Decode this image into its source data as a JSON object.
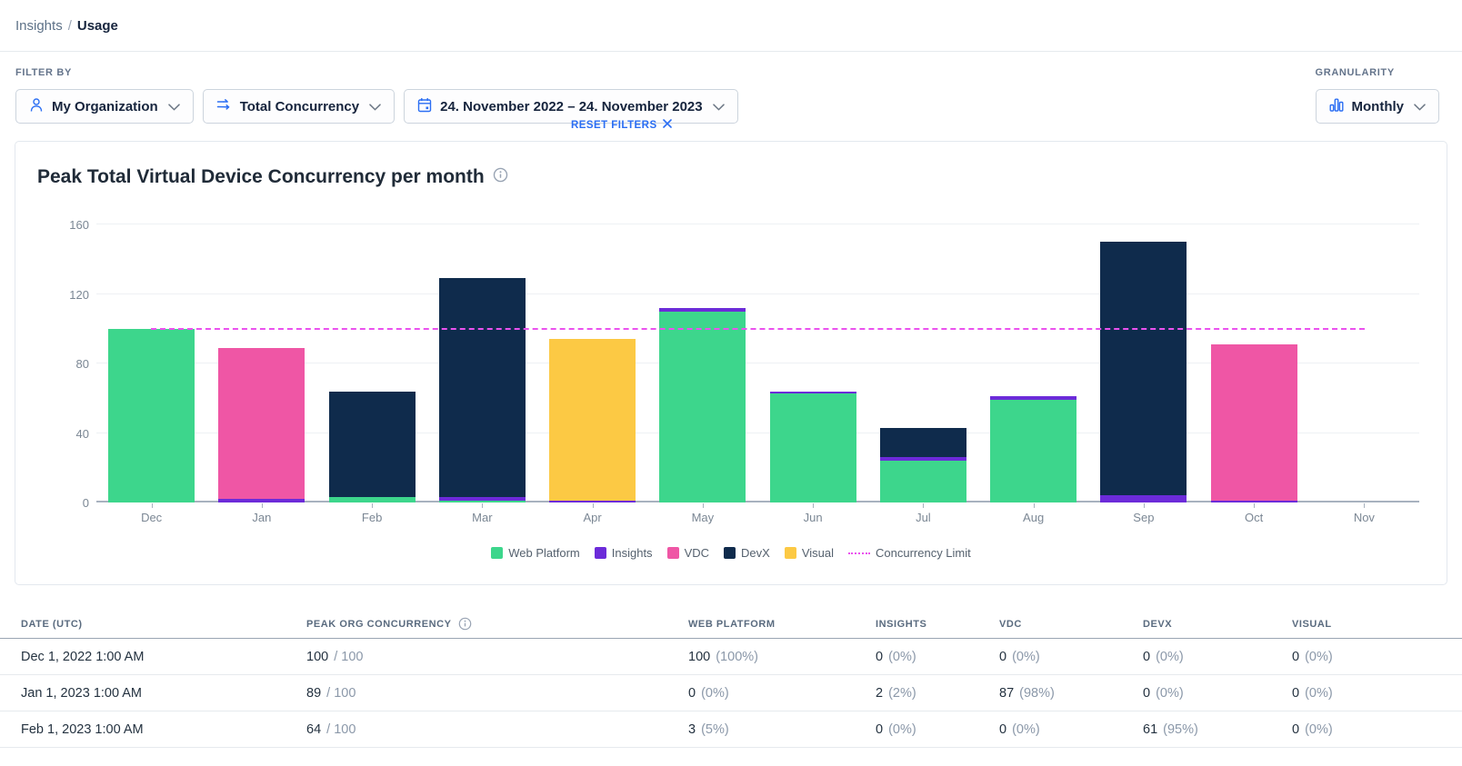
{
  "breadcrumb": {
    "parent": "Insights",
    "divider": "/",
    "current": "Usage"
  },
  "filters": {
    "filter_by_label": "FILTER BY",
    "reset_filters_label": "RESET FILTERS",
    "organization": {
      "label": "My Organization"
    },
    "metric": {
      "label": "Total Concurrency"
    },
    "date_range": {
      "label": "24. November 2022 – 24. November 2023"
    },
    "granularity": {
      "label": "GRANULARITY",
      "value": "Monthly"
    }
  },
  "chart_data": {
    "type": "bar",
    "stacked": true,
    "title": "Peak Total Virtual Device Concurrency per month",
    "categories": [
      "Dec",
      "Jan",
      "Feb",
      "Mar",
      "Apr",
      "May",
      "Jun",
      "Jul",
      "Aug",
      "Sep",
      "Oct",
      "Nov"
    ],
    "series": [
      {
        "name": "Web Platform",
        "color": "#3dd68c",
        "values": [
          100,
          0,
          3,
          1,
          0,
          110,
          63,
          24,
          59,
          0,
          0,
          0
        ]
      },
      {
        "name": "Insights",
        "color": "#6c2bd9",
        "values": [
          0,
          2,
          0,
          2,
          1,
          2,
          1,
          2,
          2,
          4,
          1,
          0
        ]
      },
      {
        "name": "VDC",
        "color": "#ef56a5",
        "values": [
          0,
          87,
          0,
          0,
          0,
          0,
          0,
          0,
          0,
          0,
          90,
          0
        ]
      },
      {
        "name": "DevX",
        "color": "#0f2b4c",
        "values": [
          0,
          0,
          61,
          126,
          0,
          0,
          0,
          17,
          0,
          146,
          0,
          0
        ]
      },
      {
        "name": "Visual",
        "color": "#fcc944",
        "values": [
          0,
          0,
          0,
          0,
          93,
          0,
          0,
          0,
          0,
          0,
          0,
          0
        ]
      }
    ],
    "limit_line": {
      "name": "Concurrency Limit",
      "value": 100,
      "color": "#ea52ee"
    },
    "ylim": [
      0,
      160
    ],
    "yticks": [
      0,
      40,
      80,
      120,
      160
    ],
    "grid": true,
    "legend_position": "bottom"
  },
  "table": {
    "headers": [
      "DATE (UTC)",
      "PEAK ORG CONCURRENCY",
      "WEB PLATFORM",
      "INSIGHTS",
      "VDC",
      "DEVX",
      "VISUAL"
    ],
    "rows": [
      {
        "date": "Dec 1, 2022 1:00 AM",
        "peak": "100",
        "peak_max": "/ 100",
        "cells": [
          {
            "v": "100",
            "pct": "(100%)"
          },
          {
            "v": "0",
            "pct": "(0%)"
          },
          {
            "v": "0",
            "pct": "(0%)"
          },
          {
            "v": "0",
            "pct": "(0%)"
          },
          {
            "v": "0",
            "pct": "(0%)"
          }
        ]
      },
      {
        "date": "Jan 1, 2023 1:00 AM",
        "peak": "89",
        "peak_max": "/ 100",
        "cells": [
          {
            "v": "0",
            "pct": "(0%)"
          },
          {
            "v": "2",
            "pct": "(2%)"
          },
          {
            "v": "87",
            "pct": "(98%)"
          },
          {
            "v": "0",
            "pct": "(0%)"
          },
          {
            "v": "0",
            "pct": "(0%)"
          }
        ]
      },
      {
        "date": "Feb 1, 2023 1:00 AM",
        "peak": "64",
        "peak_max": "/ 100",
        "cells": [
          {
            "v": "3",
            "pct": "(5%)"
          },
          {
            "v": "0",
            "pct": "(0%)"
          },
          {
            "v": "0",
            "pct": "(0%)"
          },
          {
            "v": "61",
            "pct": "(95%)"
          },
          {
            "v": "0",
            "pct": "(0%)"
          }
        ]
      }
    ]
  }
}
